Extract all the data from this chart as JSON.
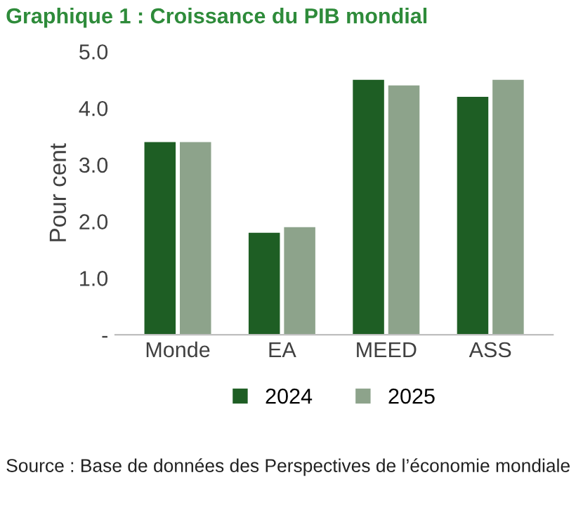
{
  "chart_data": {
    "type": "bar",
    "title": "Graphique 1 : Croissance du PIB mondial",
    "ylabel": "Pour cent",
    "categories": [
      "Monde",
      "EA",
      "MEED",
      "ASS"
    ],
    "series": [
      {
        "name": "2024",
        "color": "#1e5e24",
        "values": [
          3.4,
          1.8,
          4.5,
          4.2
        ]
      },
      {
        "name": "2025",
        "color": "#8da38b",
        "values": [
          3.4,
          1.9,
          4.4,
          4.5
        ]
      }
    ],
    "ylim": [
      0,
      5
    ],
    "yticks": [
      {
        "value": 0,
        "label": "-"
      },
      {
        "value": 1,
        "label": "1.0"
      },
      {
        "value": 2,
        "label": "2.0"
      },
      {
        "value": 3,
        "label": "3.0"
      },
      {
        "value": 4,
        "label": "4.0"
      },
      {
        "value": 5,
        "label": "5.0"
      }
    ],
    "grid": false,
    "legend": "bottom",
    "annotations": [
      "Source : Base de données des Perspectives de l’économie mondiale"
    ]
  }
}
